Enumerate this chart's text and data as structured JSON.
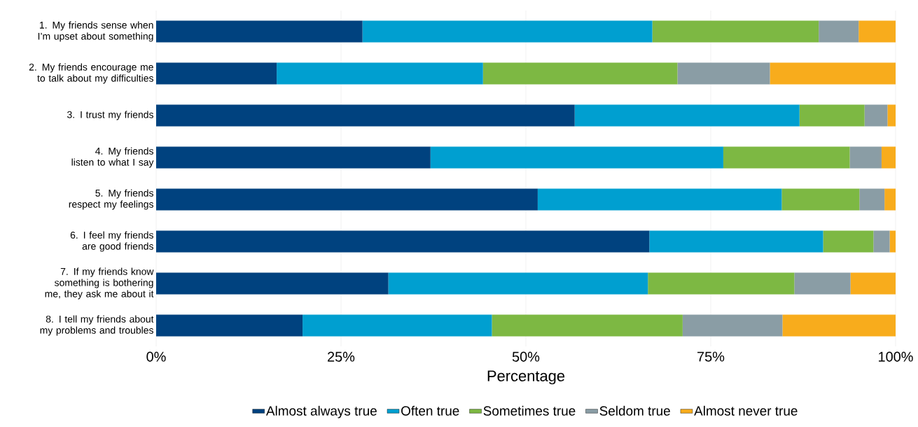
{
  "chart_data": {
    "type": "bar",
    "orientation": "horizontal",
    "stacked": true,
    "xlabel": "Percentage",
    "categories": [
      "1. My friends sense when I’m upset about something",
      "2. My friends encourage me to talk about my difficulties",
      "3. I trust my friends",
      "4. My friends listen to what I say",
      "5. My friends respect my feelings",
      "6. I feel my friends are good friends",
      "7. If my friends know something is bothering me, they ask me about it",
      "8. I tell my friends about my problems and troubles"
    ],
    "series": [
      {
        "name": "Almost always true",
        "color": "#00427f",
        "values": [
          27.9,
          16.3,
          56.6,
          37.1,
          51.6,
          66.7,
          31.4,
          19.8
        ]
      },
      {
        "name": "Often true",
        "color": "#009fd0",
        "values": [
          39.2,
          27.9,
          30.4,
          39.6,
          33.0,
          23.5,
          35.1,
          25.6
        ]
      },
      {
        "name": "Sometimes true",
        "color": "#7db843",
        "values": [
          22.5,
          26.3,
          8.8,
          17.1,
          10.5,
          6.8,
          19.8,
          25.8
        ]
      },
      {
        "name": "Seldom true",
        "color": "#8a9da5",
        "values": [
          5.4,
          12.5,
          3.1,
          4.3,
          3.4,
          2.2,
          7.6,
          13.5
        ]
      },
      {
        "name": "Almost never true",
        "color": "#f8ac1c",
        "values": [
          5.0,
          17.0,
          1.1,
          1.9,
          1.5,
          0.8,
          6.1,
          15.3
        ]
      }
    ],
    "xlim": [
      0,
      100
    ],
    "xticks": [
      {
        "value": 0,
        "label": "0%"
      },
      {
        "value": 25,
        "label": "25%"
      },
      {
        "value": 50,
        "label": "50%"
      },
      {
        "value": 75,
        "label": "75%"
      },
      {
        "value": 100,
        "label": "100%"
      }
    ],
    "grid": "x",
    "legend": "bottom"
  }
}
